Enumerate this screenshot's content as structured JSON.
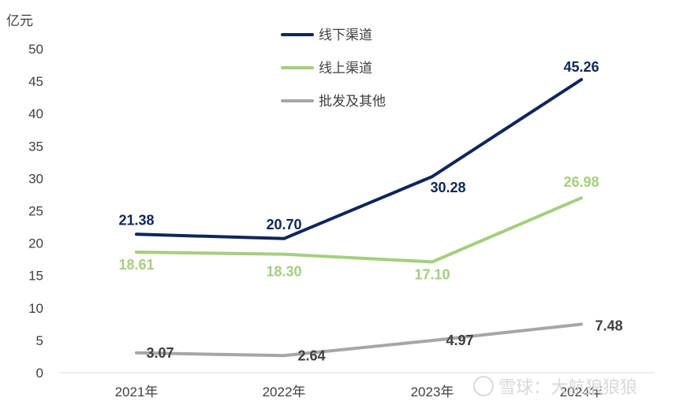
{
  "chart_data": {
    "type": "line",
    "ylabel": "亿元",
    "ylim": [
      0,
      50
    ],
    "yticks": [
      0,
      5,
      10,
      15,
      20,
      25,
      30,
      35,
      40,
      45,
      50
    ],
    "categories": [
      "2021年",
      "2022年",
      "2023年",
      "2024年"
    ],
    "grid": false,
    "legend_position": "top-center",
    "series": [
      {
        "name": "线下渠道",
        "color": "#0e2659",
        "values": [
          21.38,
          20.7,
          30.28,
          45.26
        ],
        "labels": [
          "21.38",
          "20.70",
          "30.28",
          "45.26"
        ]
      },
      {
        "name": "线上渠道",
        "color": "#a4cf7e",
        "values": [
          18.61,
          18.3,
          17.1,
          26.98
        ],
        "labels": [
          "18.61",
          "18.30",
          "17.10",
          "26.98"
        ]
      },
      {
        "name": "批发及其他",
        "color": "#a6a6a6",
        "values": [
          3.07,
          2.64,
          4.97,
          7.48
        ],
        "labels": [
          "3.07",
          "2.64",
          "4.97",
          "7.48"
        ]
      }
    ]
  },
  "watermark": {
    "text": "雪球：大航狼狼狼"
  },
  "colors": {
    "data_label_gray": "#404040"
  }
}
